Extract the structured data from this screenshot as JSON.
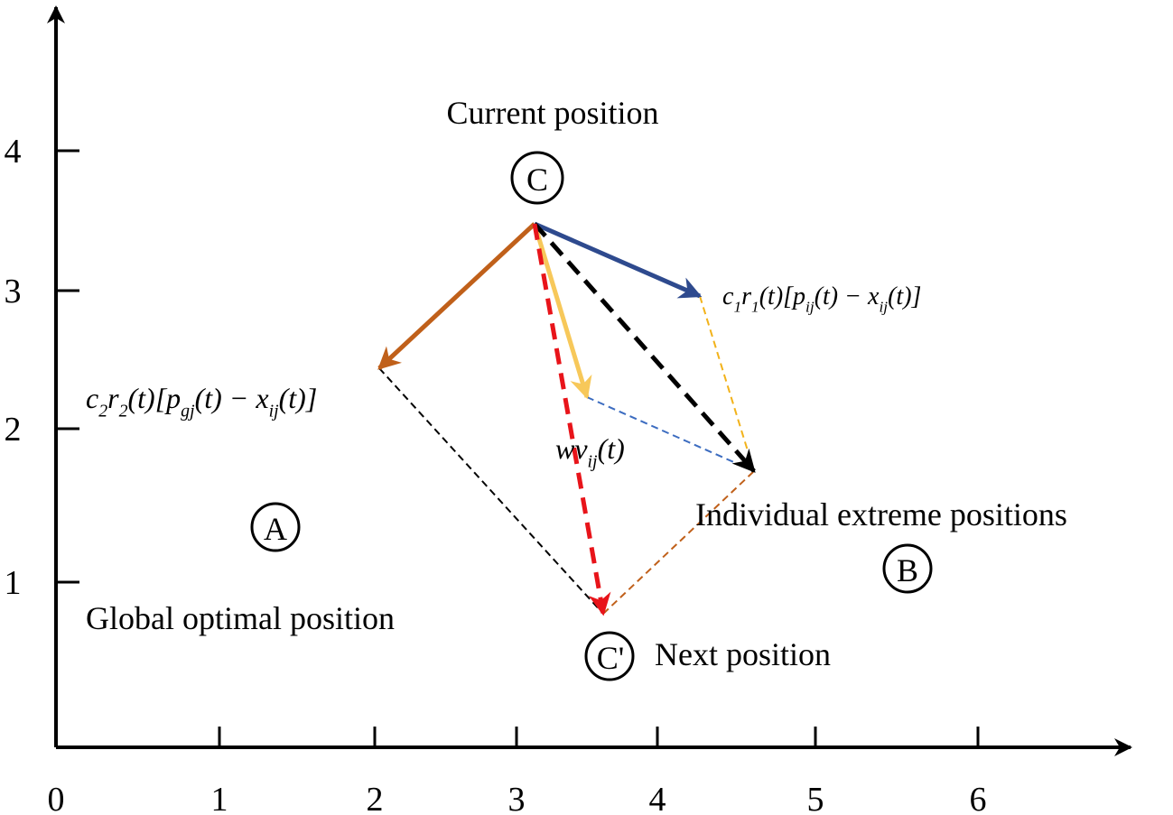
{
  "x_axis": {
    "ticks": [
      "0",
      "1",
      "2",
      "3",
      "4",
      "5",
      "6"
    ]
  },
  "y_axis": {
    "ticks": [
      "1",
      "2",
      "3",
      "4"
    ]
  },
  "labels": {
    "current": "Current position",
    "individual": "Individual extreme positions",
    "global": "Global optimal position",
    "next": "Next position"
  },
  "nodes": {
    "c": "C",
    "a": "A",
    "b": "B",
    "c_next": "C'"
  },
  "formulas": {
    "pbest": [
      "c",
      "1",
      "r",
      "1",
      "(t)[p",
      "ij",
      "(t) − x",
      "ij",
      "(t)]"
    ],
    "gbest": [
      "c",
      "2",
      "r",
      "2",
      "(t)[p",
      "gj",
      "(t) − x",
      "ij",
      "(t)]"
    ],
    "inertia": [
      "wv",
      "ij",
      "(t)"
    ]
  }
}
